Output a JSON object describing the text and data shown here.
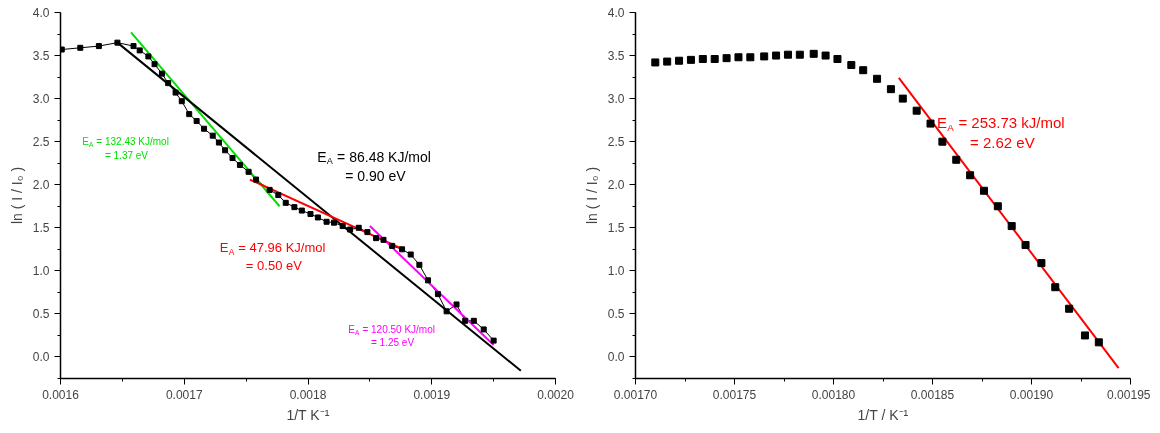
{
  "chart_data": [
    {
      "type": "line",
      "xlabel": "1/T K⁻¹",
      "ylabel": "ln ( I / I₀ )",
      "marker": "none",
      "grid": false,
      "xlim": [
        0.0016,
        0.002
      ],
      "ylim": [
        -0.25,
        4.0
      ],
      "xticks": [
        0.0016,
        0.0017,
        0.0018,
        0.0019,
        {
          "value": 0.002,
          "label": "0.0020"
        }
      ],
      "yticks": [
        {
          "value": 0,
          "label": "0.0"
        },
        0.5,
        {
          "value": 1,
          "label": "1.0"
        },
        1.5,
        {
          "value": 2,
          "label": "2.0"
        },
        2.5,
        {
          "value": 3,
          "label": "3.0"
        },
        3.5,
        {
          "value": 4,
          "label": "4.0"
        }
      ],
      "series": [
        {
          "color": "#000000",
          "marker": "square",
          "x": [
            0.001601,
            0.001616,
            0.001631,
            0.001646,
            0.001659,
            0.001664,
            0.001671,
            0.001676,
            0.001682,
            0.001687,
            0.001693,
            0.001698,
            0.001704,
            0.00171,
            0.001716,
            0.001723,
            0.001728,
            0.001733,
            0.001739,
            0.001745,
            0.001752,
            0.001758,
            0.001769,
            0.001776,
            0.001782,
            0.001789,
            0.001795,
            0.001802,
            0.001808,
            0.001815,
            0.001821,
            0.001828,
            0.001834,
            0.001841,
            0.001848,
            0.001855,
            0.001861,
            0.001868,
            0.001876,
            0.001883,
            0.00189,
            0.001897,
            0.001905,
            0.001912,
            0.00192,
            0.001927,
            0.001934,
            0.001942,
            0.00195
          ],
          "values": [
            3.57,
            3.59,
            3.61,
            3.65,
            3.61,
            3.56,
            3.49,
            3.4,
            3.29,
            3.18,
            3.07,
            2.97,
            2.82,
            2.74,
            2.65,
            2.57,
            2.49,
            2.4,
            2.31,
            2.23,
            2.15,
            2.06,
            1.94,
            1.88,
            1.79,
            1.74,
            1.7,
            1.66,
            1.62,
            1.57,
            1.56,
            1.52,
            1.48,
            1.5,
            1.45,
            1.38,
            1.36,
            1.29,
            1.25,
            1.19,
            1.07,
            0.89,
            0.73,
            0.53,
            0.61,
            0.42,
            0.42,
            0.32,
            0.19
          ]
        },
        {
          "color": "#00e000",
          "x": [
            0.001657,
            0.001777
          ],
          "values": [
            3.77,
            1.75
          ]
        },
        {
          "color": "#000000",
          "x": [
            0.001646,
            0.001972
          ],
          "values": [
            3.65,
            -0.16
          ]
        },
        {
          "color": "#ff0000",
          "x": [
            0.001753,
            0.001874
          ],
          "values": [
            2.06,
            1.27
          ]
        },
        {
          "color": "#ff00ff",
          "x": [
            0.00185,
            0.00195
          ],
          "values": [
            1.52,
            0.14
          ]
        }
      ],
      "annotations": [
        "E$_{A}$ = 132.43 KJ/mol\n= 1.37 eV",
        "E$_{A}$ = 86.48 KJ/mol\n= 0.90 eV",
        "E$_{A}$ = 47.96 KJ/mol\n= 0.50 eV",
        "E$_{A}$ = 120.50 KJ/mol\n= 1.25 eV"
      ]
    },
    {
      "type": "scatter",
      "xlabel": "1/T / K⁻¹",
      "ylabel": "ln ( I / I₀ )",
      "marker": "square",
      "grid": false,
      "xlim": [
        0.0017,
        0.00195
      ],
      "ylim": [
        -0.25,
        4.0
      ],
      "xticks": [
        {
          "value": 0.0017,
          "label": "0.00170"
        },
        0.00175,
        {
          "value": 0.0018,
          "label": "0.00180"
        },
        0.00185,
        {
          "value": 0.0019,
          "label": "0.00190"
        },
        0.00195
      ],
      "yticks": [
        {
          "value": 0,
          "label": "0.0"
        },
        0.5,
        {
          "value": 1,
          "label": "1.0"
        },
        1.5,
        {
          "value": 2,
          "label": "2.0"
        },
        2.5,
        {
          "value": 3,
          "label": "3.0"
        },
        3.5,
        {
          "value": 4,
          "label": "4.0"
        }
      ],
      "series": [
        {
          "color": "#000000",
          "x": [
            0.00171,
            0.001716,
            0.001722,
            0.001728,
            0.001734,
            0.00174,
            0.001746,
            0.001752,
            0.001758,
            0.001765,
            0.001771,
            0.001777,
            0.001783,
            0.00179,
            0.001796,
            0.001802,
            0.001809,
            0.001815,
            0.001822,
            0.001829,
            0.001835,
            0.001842,
            0.001849,
            0.001855,
            0.001862,
            0.001869,
            0.001876,
            0.001883,
            0.00189,
            0.001897,
            0.001905,
            0.001912,
            0.001919,
            0.001927,
            0.001934
          ],
          "values": [
            3.42,
            3.43,
            3.44,
            3.45,
            3.46,
            3.46,
            3.47,
            3.48,
            3.48,
            3.49,
            3.5,
            3.51,
            3.51,
            3.52,
            3.5,
            3.46,
            3.39,
            3.33,
            3.23,
            3.11,
            3.0,
            2.86,
            2.71,
            2.5,
            2.29,
            2.11,
            1.93,
            1.75,
            1.52,
            1.3,
            1.09,
            0.81,
            0.56,
            0.25,
            0.17
          ]
        },
        {
          "type": "line",
          "marker": "none",
          "color": "#ff0000",
          "x": [
            0.001833,
            0.001944
          ],
          "values": [
            3.24,
            -0.13
          ]
        }
      ],
      "annotations": [
        "E$_{A}$ = 253.73 kJ/mol\n= 2.62 eV"
      ]
    }
  ]
}
